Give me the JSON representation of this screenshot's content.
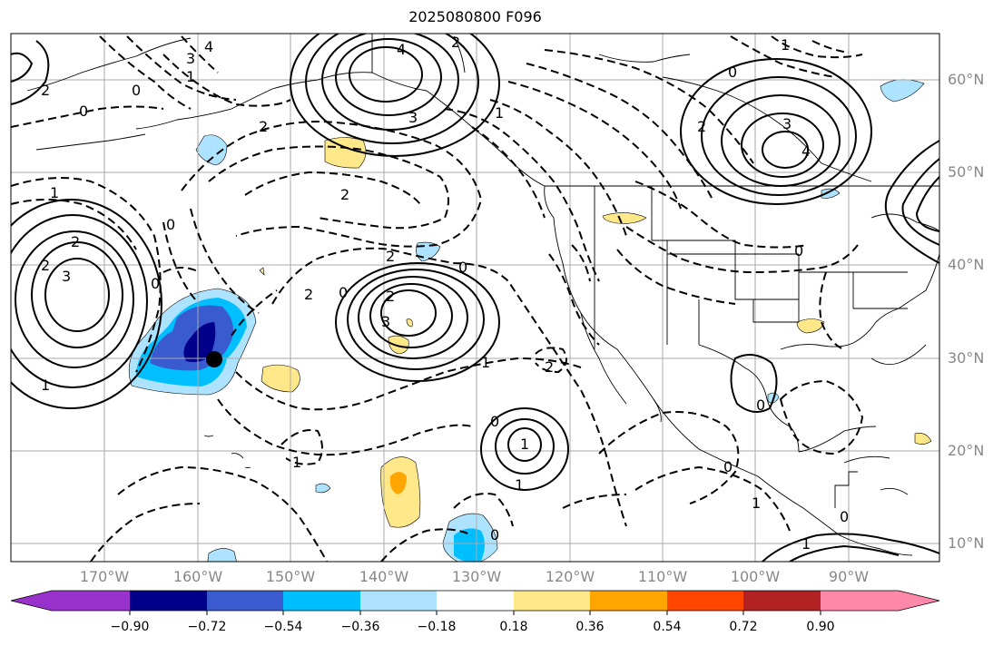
{
  "title": "2025080800 F096",
  "lat_labels": [
    "60°N",
    "50°N",
    "40°N",
    "30°N",
    "20°N",
    "10°N"
  ],
  "lon_labels": [
    "170°W",
    "160°W",
    "150°W",
    "140°W",
    "130°W",
    "120°W",
    "110°W",
    "100°W",
    "90°W"
  ],
  "colorbar": {
    "labels": [
      "−0.90",
      "−0.72",
      "−0.54",
      "−0.36",
      "−0.18",
      "0.18",
      "0.36",
      "0.54",
      "0.72",
      "0.90"
    ],
    "colors": [
      "#9932cc",
      "#00008b",
      "#3a5bd0",
      "#00bfff",
      "#ade3ff",
      "#ffffff",
      "#ffe88a",
      "#ffa500",
      "#ff4500",
      "#b22222",
      "#ff88aa"
    ]
  },
  "contour_labels": [
    "4",
    "4",
    "2",
    "0",
    "1",
    "3",
    "2",
    "0",
    "2",
    "3",
    "2",
    "4",
    "1",
    "2",
    "0",
    "0",
    "1",
    "3",
    "2",
    "3",
    "0",
    "2",
    "3",
    "1",
    "2",
    "0",
    "1",
    "2",
    "2",
    "1",
    "1",
    "0",
    "2",
    "1",
    "0",
    "1",
    "0",
    "1",
    "1",
    "0",
    "0",
    "0",
    "0"
  ],
  "marker": "typhoon-center"
}
